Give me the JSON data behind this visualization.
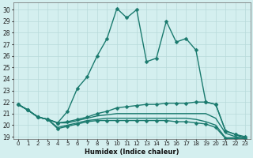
{
  "xlabel": "Humidex (Indice chaleur)",
  "bg_color": "#d4efef",
  "grid_color": "#b8dada",
  "line_color": "#1a7a6e",
  "xlim": [
    -0.5,
    23.5
  ],
  "ylim": [
    18.8,
    30.6
  ],
  "yticks": [
    19,
    20,
    21,
    22,
    23,
    24,
    25,
    26,
    27,
    28,
    29,
    30
  ],
  "xticks": [
    0,
    1,
    2,
    3,
    4,
    5,
    6,
    7,
    8,
    9,
    10,
    11,
    12,
    13,
    14,
    15,
    16,
    17,
    18,
    19,
    20,
    21,
    22,
    23
  ],
  "lines": [
    {
      "x": [
        0,
        1,
        2,
        3,
        4,
        5,
        6,
        7,
        8,
        9,
        10,
        11,
        12,
        13,
        14,
        15,
        16,
        17,
        18,
        19,
        20,
        21,
        22,
        23
      ],
      "y": [
        21.8,
        21.3,
        20.7,
        20.5,
        20.2,
        21.2,
        23.2,
        24.2,
        26.0,
        27.5,
        30.1,
        29.3,
        30.0,
        25.5,
        25.8,
        29.0,
        27.2,
        27.5,
        26.5,
        22.0,
        21.8,
        19.5,
        19.2,
        18.85
      ],
      "marker": "D",
      "markersize": 2.5,
      "linewidth": 1.0,
      "has_marker": true
    },
    {
      "x": [
        0,
        1,
        2,
        3,
        4,
        5,
        6,
        7,
        8,
        9,
        10,
        11,
        12,
        13,
        14,
        15,
        16,
        17,
        18,
        19,
        20,
        21,
        22,
        23
      ],
      "y": [
        21.8,
        21.3,
        20.7,
        20.5,
        20.2,
        20.3,
        20.5,
        20.7,
        21.0,
        21.2,
        21.5,
        21.6,
        21.7,
        21.8,
        21.8,
        21.9,
        21.9,
        21.9,
        22.0,
        22.0,
        21.8,
        19.5,
        19.2,
        19.0
      ],
      "marker": "D",
      "markersize": 2.5,
      "linewidth": 1.0,
      "has_marker": true
    },
    {
      "x": [
        0,
        1,
        2,
        3,
        4,
        5,
        6,
        7,
        8,
        9,
        10,
        11,
        12,
        13,
        14,
        15,
        16,
        17,
        18,
        19,
        20,
        21,
        22,
        23
      ],
      "y": [
        21.8,
        21.3,
        20.7,
        20.5,
        20.2,
        20.2,
        20.4,
        20.6,
        20.8,
        20.9,
        21.0,
        21.0,
        21.0,
        21.0,
        21.0,
        21.0,
        21.0,
        21.0,
        21.0,
        21.0,
        20.6,
        19.3,
        19.0,
        18.9
      ],
      "marker": null,
      "markersize": 0,
      "linewidth": 1.0,
      "has_marker": false
    },
    {
      "x": [
        0,
        1,
        2,
        3,
        4,
        5,
        6,
        7,
        8,
        9,
        10,
        11,
        12,
        13,
        14,
        15,
        16,
        17,
        18,
        19,
        20,
        21,
        22,
        23
      ],
      "y": [
        21.8,
        21.3,
        20.7,
        20.5,
        19.8,
        20.0,
        20.2,
        20.4,
        20.5,
        20.6,
        20.6,
        20.6,
        20.6,
        20.6,
        20.6,
        20.6,
        20.6,
        20.6,
        20.5,
        20.3,
        20.0,
        18.9,
        18.9,
        18.8
      ],
      "marker": null,
      "markersize": 0,
      "linewidth": 1.0,
      "has_marker": false
    },
    {
      "x": [
        0,
        1,
        2,
        3,
        4,
        5,
        6,
        7,
        8,
        9,
        10,
        11,
        12,
        13,
        14,
        15,
        16,
        17,
        18,
        19,
        20,
        21,
        22,
        23
      ],
      "y": [
        21.8,
        21.3,
        20.7,
        20.5,
        19.7,
        19.9,
        20.1,
        20.3,
        20.4,
        20.4,
        20.4,
        20.4,
        20.4,
        20.4,
        20.4,
        20.4,
        20.3,
        20.3,
        20.2,
        20.1,
        19.8,
        18.85,
        18.85,
        18.75
      ],
      "marker": "D",
      "markersize": 2.5,
      "linewidth": 1.0,
      "has_marker": true
    }
  ]
}
